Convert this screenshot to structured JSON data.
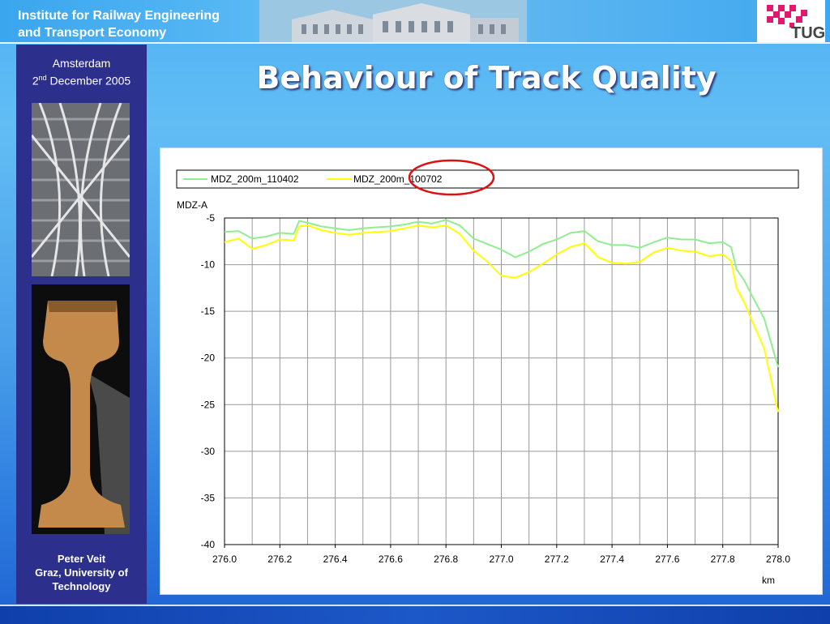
{
  "header": {
    "institute_line1": "Institute for Railway Engineering",
    "institute_line2": "and Transport Economy",
    "logo_text": "TUG"
  },
  "sidebar": {
    "place": "Amsterdam",
    "date_day": "2",
    "date_suffix": "nd",
    "date_rest": " December 2005",
    "author_name": "Peter Veit",
    "author_affil_1": "Graz, University of",
    "author_affil_2": "Technology"
  },
  "title": "Behaviour of Track Quality",
  "colors": {
    "series_green": "#90ee90",
    "series_yellow": "#ffff00",
    "highlight_circle": "#dd1111",
    "sidebar": "#2d2f8d"
  },
  "chart_data": {
    "type": "line",
    "ylabel": "MDZ-A",
    "xlabel": "km",
    "xlim": [
      276.0,
      278.0
    ],
    "ylim": [
      -40,
      -5
    ],
    "x_ticks": [
      "276.0",
      "276.2",
      "276.4",
      "276.6",
      "276.8",
      "277.0",
      "277.2",
      "277.4",
      "277.6",
      "277.8",
      "278.0"
    ],
    "y_ticks": [
      "-5",
      "-10",
      "-15",
      "-20",
      "-25",
      "-30",
      "-35",
      "-40"
    ],
    "grid": true,
    "legend_position": "top",
    "series": [
      {
        "name": "MDZ_200m_110402",
        "color": "#90ee90",
        "x": [
          276.0,
          276.05,
          276.1,
          276.15,
          276.2,
          276.25,
          276.27,
          276.3,
          276.35,
          276.4,
          276.45,
          276.5,
          276.55,
          276.6,
          276.65,
          276.7,
          276.75,
          276.8,
          276.85,
          276.9,
          276.95,
          277.0,
          277.05,
          277.1,
          277.15,
          277.2,
          277.25,
          277.3,
          277.35,
          277.4,
          277.45,
          277.5,
          277.55,
          277.6,
          277.65,
          277.7,
          277.75,
          277.8,
          277.83,
          277.85,
          277.88,
          277.9,
          277.95,
          278.0
        ],
        "y": [
          -6.5,
          -6.4,
          -7.2,
          -7.0,
          -6.6,
          -6.7,
          -5.3,
          -5.5,
          -5.9,
          -6.1,
          -6.3,
          -6.1,
          -6.0,
          -5.9,
          -5.7,
          -5.4,
          -5.6,
          -5.2,
          -5.8,
          -7.2,
          -7.8,
          -8.4,
          -9.2,
          -8.6,
          -7.8,
          -7.3,
          -6.6,
          -6.4,
          -7.5,
          -7.9,
          -7.9,
          -8.2,
          -7.6,
          -7.1,
          -7.3,
          -7.3,
          -7.7,
          -7.6,
          -8.1,
          -10.5,
          -11.8,
          -13.0,
          -15.8,
          -21.0
        ]
      },
      {
        "name": "MDZ_200m_100702",
        "color": "#ffff00",
        "x": [
          276.0,
          276.05,
          276.1,
          276.15,
          276.2,
          276.25,
          276.27,
          276.3,
          276.35,
          276.4,
          276.45,
          276.5,
          276.55,
          276.6,
          276.65,
          276.7,
          276.75,
          276.8,
          276.85,
          276.9,
          276.95,
          277.0,
          277.05,
          277.1,
          277.15,
          277.2,
          277.25,
          277.3,
          277.35,
          277.4,
          277.45,
          277.5,
          277.55,
          277.6,
          277.65,
          277.7,
          277.75,
          277.8,
          277.83,
          277.85,
          277.88,
          277.9,
          277.95,
          278.0
        ],
        "y": [
          -7.6,
          -7.2,
          -8.3,
          -7.9,
          -7.3,
          -7.4,
          -5.9,
          -5.8,
          -6.3,
          -6.6,
          -6.8,
          -6.6,
          -6.5,
          -6.4,
          -6.1,
          -5.8,
          -6.0,
          -5.8,
          -6.7,
          -8.5,
          -9.7,
          -11.2,
          -11.4,
          -10.8,
          -9.9,
          -8.9,
          -8.1,
          -7.7,
          -9.2,
          -9.8,
          -9.9,
          -9.7,
          -8.7,
          -8.2,
          -8.5,
          -8.6,
          -9.1,
          -8.9,
          -9.6,
          -12.5,
          -14.2,
          -15.6,
          -19.0,
          -25.8
        ]
      }
    ]
  }
}
